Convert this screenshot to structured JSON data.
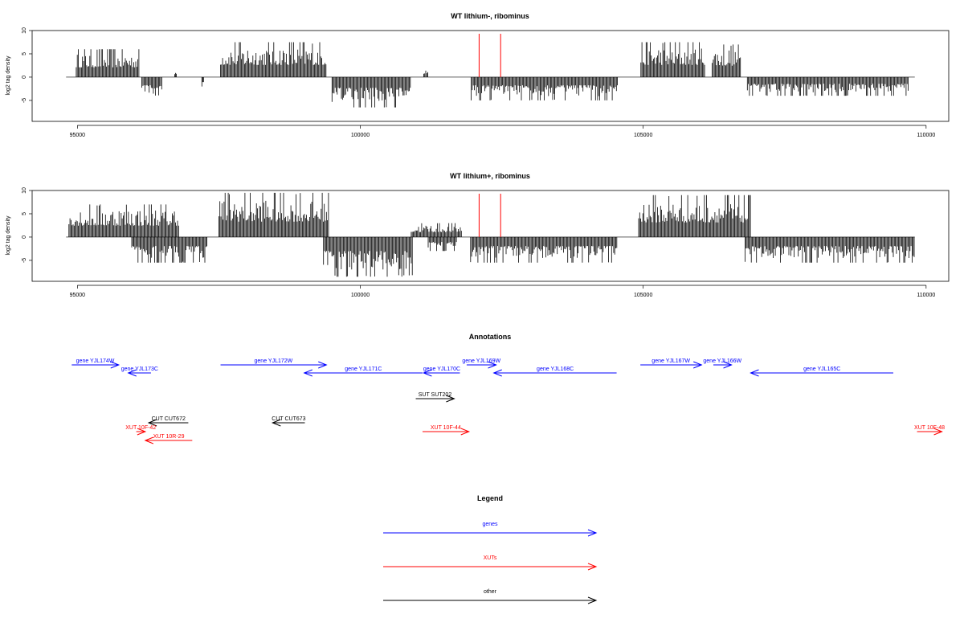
{
  "colors": {
    "black": "#000000",
    "gene": "#0000ff",
    "xut": "#ff0000",
    "other": "#000000"
  },
  "axis": {
    "xmin": 94200,
    "xmax": 110400,
    "xticks": [
      95000,
      100000,
      105000,
      110000
    ],
    "ylabel": "log2 tag density",
    "yticks": [
      10,
      5,
      0,
      -5
    ],
    "ylim": [
      -9.5,
      10
    ]
  },
  "annotations_title": "Annotations",
  "legend": {
    "title": "Legend",
    "items": [
      {
        "label": "genes",
        "color": "gene"
      },
      {
        "label": "XUTs",
        "color": "xut"
      },
      {
        "label": "other",
        "color": "other"
      }
    ]
  },
  "chart_data": [
    {
      "type": "bar",
      "title": "WT lithium-, ribominus",
      "ylabel": "log2 tag density",
      "xlim": [
        94200,
        110400
      ],
      "ylim": [
        -9.5,
        10
      ],
      "baseline_range": [
        94800,
        109800
      ],
      "markers": [
        102100,
        102480
      ],
      "positive_blocks": [
        {
          "from": 94980,
          "to": 96100,
          "max": 6
        },
        {
          "from": 96720,
          "to": 96760,
          "max": 1.5
        },
        {
          "from": 97530,
          "to": 99400,
          "max": 7.5
        },
        {
          "from": 101120,
          "to": 101200,
          "max": 2
        },
        {
          "from": 104960,
          "to": 106100,
          "max": 7.5
        },
        {
          "from": 106220,
          "to": 106720,
          "max": 7
        }
      ],
      "negative_blocks": [
        {
          "from": 96140,
          "to": 96500,
          "min": -5
        },
        {
          "from": 97200,
          "to": 97230,
          "min": -3
        },
        {
          "from": 99500,
          "to": 100900,
          "min": -6.5
        },
        {
          "from": 101960,
          "to": 104550,
          "min": -5
        },
        {
          "from": 106840,
          "to": 109700,
          "min": -4
        }
      ]
    },
    {
      "type": "bar",
      "title": "WT lithium+, ribominus",
      "ylabel": "log2 tag density",
      "xlim": [
        94200,
        110400
      ],
      "ylim": [
        -9.5,
        10
      ],
      "baseline_range": [
        94800,
        109800
      ],
      "markers": [
        102100,
        102480
      ],
      "positive_blocks": [
        {
          "from": 94850,
          "to": 96800,
          "max": 7
        },
        {
          "from": 97500,
          "to": 99450,
          "max": 9.5
        },
        {
          "from": 100900,
          "to": 101800,
          "max": 3
        },
        {
          "from": 104920,
          "to": 106900,
          "max": 9
        }
      ],
      "negative_blocks": [
        {
          "from": 95960,
          "to": 97300,
          "min": -5.5
        },
        {
          "from": 99350,
          "to": 100920,
          "min": -8.5
        },
        {
          "from": 101200,
          "to": 101700,
          "min": -3
        },
        {
          "from": 101950,
          "to": 104550,
          "min": -5.5
        },
        {
          "from": 106800,
          "to": 109800,
          "min": -5.5
        }
      ]
    }
  ],
  "features": [
    {
      "label": "gene YJL174W",
      "start": 94900,
      "end": 95730,
      "strand": "+",
      "kind": "gene",
      "row": 1
    },
    {
      "label": "gene YJL173C",
      "start": 95900,
      "end": 96300,
      "strand": "-",
      "kind": "gene",
      "row": 2
    },
    {
      "label": "gene YJL172W",
      "start": 97530,
      "end": 99400,
      "strand": "+",
      "kind": "gene",
      "row": 1
    },
    {
      "label": "gene YJL171C",
      "start": 99010,
      "end": 101100,
      "strand": "-",
      "kind": "gene",
      "row": 2
    },
    {
      "label": "gene YJL170C",
      "start": 101120,
      "end": 101760,
      "strand": "-",
      "kind": "gene",
      "row": 2
    },
    {
      "label": "gene YJL169W",
      "start": 101880,
      "end": 102400,
      "strand": "+",
      "kind": "gene",
      "row": 1
    },
    {
      "label": "gene YJL168C",
      "start": 102360,
      "end": 104530,
      "strand": "-",
      "kind": "gene",
      "row": 2
    },
    {
      "label": "gene YJL167W",
      "start": 104950,
      "end": 106030,
      "strand": "+",
      "kind": "gene",
      "row": 1
    },
    {
      "label": "gene YJL166W",
      "start": 106240,
      "end": 106560,
      "strand": "+",
      "kind": "gene",
      "row": 1
    },
    {
      "label": "gene YJL165C",
      "start": 106900,
      "end": 109420,
      "strand": "-",
      "kind": "gene",
      "row": 2
    },
    {
      "label": "SUT SUT202",
      "start": 100980,
      "end": 101660,
      "strand": "+",
      "kind": "other",
      "row": 3
    },
    {
      "label": "CUT CUT672",
      "start": 96260,
      "end": 96960,
      "strand": "-",
      "kind": "other",
      "row": 4
    },
    {
      "label": "CUT CUT673",
      "start": 98450,
      "end": 99020,
      "strand": "-",
      "kind": "other",
      "row": 4
    },
    {
      "label": "XUT 10F-42",
      "start": 96040,
      "end": 96200,
      "strand": "+",
      "kind": "xut",
      "row": 5
    },
    {
      "label": "XUT 10R-29",
      "start": 96200,
      "end": 97030,
      "strand": "-",
      "kind": "xut",
      "row": 6
    },
    {
      "label": "XUT 10F-44",
      "start": 101100,
      "end": 101920,
      "strand": "+",
      "kind": "xut",
      "row": 5
    },
    {
      "label": "XUT 10F-48",
      "start": 109840,
      "end": 110280,
      "strand": "+",
      "kind": "xut",
      "row": 5
    }
  ]
}
